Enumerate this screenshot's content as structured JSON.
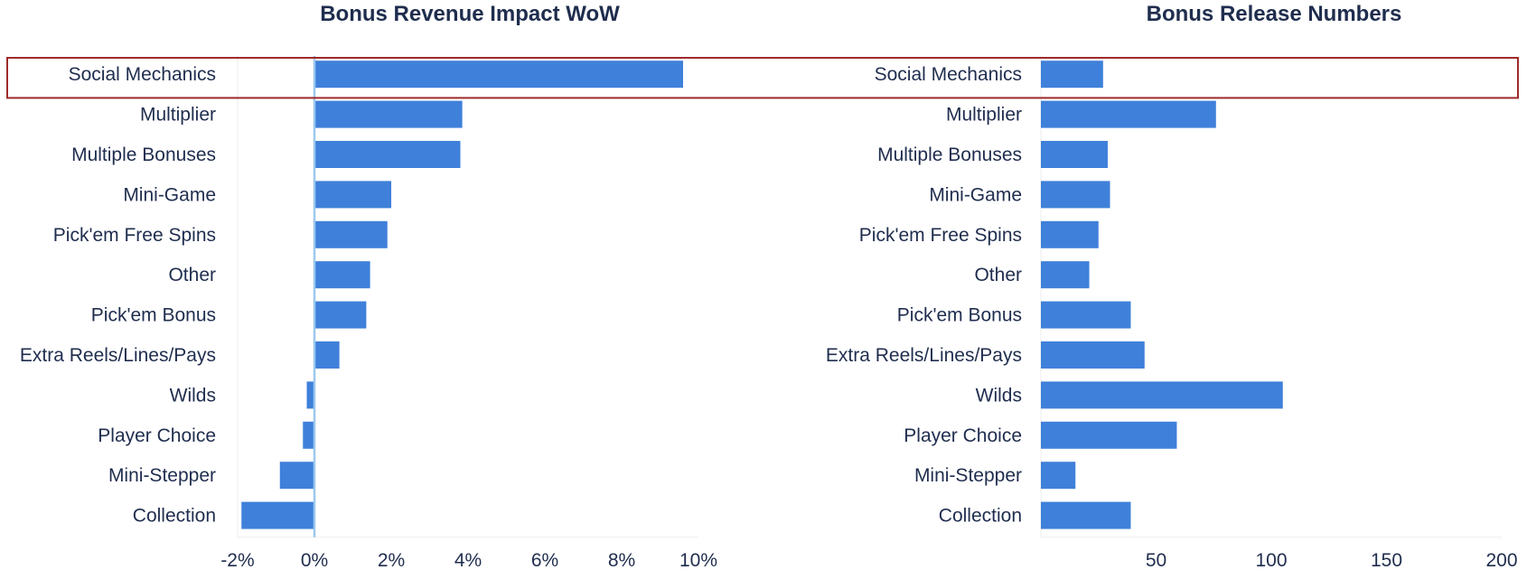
{
  "theme": {
    "bar_color": "#3f80da",
    "zero_line_color": "#9cc8ee",
    "highlight_color": "#9e2a2b",
    "grid_color": "#eeeeee",
    "text_color": "#1f2d4e"
  },
  "highlight_category": "Social Mechanics",
  "chart_data": [
    {
      "type": "bar",
      "orientation": "horizontal",
      "title": "Bonus Revenue Impact WoW",
      "categories": [
        "Social Mechanics",
        "Multiplier",
        "Multiple Bonuses",
        "Mini-Game",
        "Pick'em Free Spins",
        "Other",
        "Pick'em Bonus",
        "Extra Reels/Lines/Pays",
        "Wilds",
        "Player Choice",
        "Mini-Stepper",
        "Collection"
      ],
      "values": [
        9.6,
        3.85,
        3.8,
        2.0,
        1.9,
        1.45,
        1.35,
        0.65,
        -0.2,
        -0.3,
        -0.9,
        -1.9
      ],
      "xlim": [
        -2,
        10
      ],
      "xticks": [
        -2,
        0,
        2,
        4,
        6,
        8,
        10
      ],
      "xtick_labels": [
        "-2%",
        "0%",
        "2%",
        "4%",
        "6%",
        "8%",
        "10%"
      ],
      "xlabel": "",
      "ylabel": "",
      "grid": false
    },
    {
      "type": "bar",
      "orientation": "horizontal",
      "title": "Bonus Release Numbers",
      "categories": [
        "Social Mechanics",
        "Multiplier",
        "Multiple Bonuses",
        "Mini-Game",
        "Pick'em Free Spins",
        "Other",
        "Pick'em Bonus",
        "Extra Reels/Lines/Pays",
        "Wilds",
        "Player Choice",
        "Mini-Stepper",
        "Collection"
      ],
      "values": [
        27,
        76,
        29,
        30,
        25,
        21,
        39,
        45,
        105,
        59,
        15,
        39
      ],
      "xlim": [
        0,
        200
      ],
      "xticks": [
        50,
        100,
        150,
        200
      ],
      "xtick_labels": [
        "50",
        "100",
        "150",
        "200"
      ],
      "xlabel": "",
      "ylabel": "",
      "grid": false
    }
  ]
}
